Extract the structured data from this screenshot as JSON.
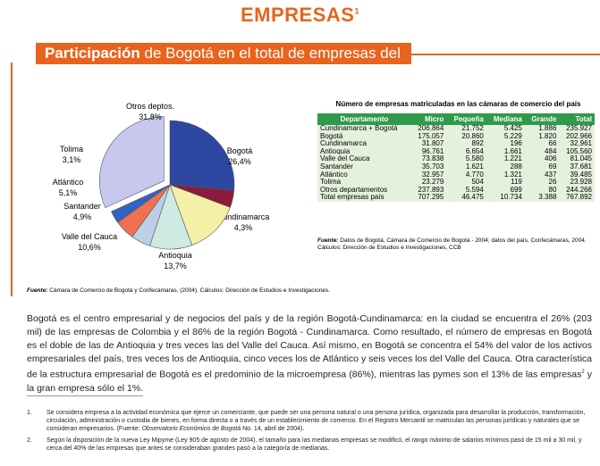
{
  "header": {
    "title": "EMPRESAS",
    "title_note": "1",
    "section_bold": "Participación",
    "section_rest": " de Bogotá en el total de empresas del país"
  },
  "chart_data": {
    "type": "pie",
    "categories": [
      "Bogotá",
      "Cundinamarca",
      "Antioquia",
      "Valle del Cauca",
      "Santander",
      "Atlántico",
      "Tolima",
      "Otros deptos."
    ],
    "values": [
      26.4,
      4.3,
      13.7,
      10.6,
      4.9,
      5.1,
      3.1,
      31.8
    ],
    "value_labels": [
      "26,4%",
      "4,3%",
      "13,7%",
      "10,6%",
      "4,9%",
      "5,1%",
      "3,1%",
      "31,8%"
    ],
    "colors": [
      "#2e47a0",
      "#8c1b3c",
      "#f4f0a6",
      "#cfe9e3",
      "#bccfe6",
      "#f07052",
      "#3262c2",
      "#c8c8ee"
    ],
    "exploded": "Otros deptos.",
    "source_label": "Fuente:",
    "source": "Cámara de Comercio de Bogotá  y Confecámaras, (2004). Cálculos: Dirección de Estudios e Investigaciones."
  },
  "table": {
    "title": "Número de empresas matriculadas en las cámaras de comercio del país",
    "header": [
      "Departamento",
      "Micro",
      "Pequeña",
      "Mediana",
      "Grande",
      "Total"
    ],
    "rows": [
      [
        "Cundinamarca + Bogotá",
        "206.864",
        "21.752",
        "5.425",
        "1.886",
        "235.927"
      ],
      [
        "Bogotá",
        "175.057",
        "20.860",
        "5.229",
        "1.820",
        "202.966"
      ],
      [
        "Cundinamarca",
        "31.807",
        "892",
        "196",
        "66",
        "32.961"
      ],
      [
        "Antioquia",
        "96.761",
        "6.654",
        "1.661",
        "484",
        "105.560"
      ],
      [
        "Valle del Cauca",
        "73.838",
        "5.580",
        "1.221",
        "406",
        "81.045"
      ],
      [
        "Santander",
        "35.703",
        "1.621",
        "288",
        "69",
        "37.681"
      ],
      [
        "Atlántico",
        "32.957",
        "4.770",
        "1.321",
        "437",
        "39.485"
      ],
      [
        "Tolima",
        "23.279",
        "504",
        "119",
        "26",
        "23.928"
      ],
      [
        "Otros departamentos",
        "237.893",
        "5.594",
        "699",
        "80",
        "244.266"
      ],
      [
        "Total empresas país",
        "707.295",
        "46.475",
        "10.734",
        "3.388",
        "767.892"
      ]
    ],
    "source_label": "Fuente:",
    "source": " Datos de Bogotá, Cámara de Comercio de Bogotá - 2004; datos del país, Confecámaras, 2004. Cálculos: Dirección de Estudios e Investigaciones, CCB"
  },
  "paragraph": {
    "text": "Bogotá es el centro empresarial y de negocios del país y de la región Bogotá-Cundinamarca: en la ciudad se encuentra el 26% (203 mil) de las empresas de Colombia y el 86% de la región Bogotá - Cundinamarca. Como resultado, el número de empresas en Bogotá es el doble de las de Antioquia y tres veces las del Valle del Cauca. Así mismo, en Bogotá se concentra el 54% del valor de los activos empresariales del país, tres veces los de Antioquia, cinco veces los de Atlántico y seis veces los del Valle del Cauca. Otra característica de la estructura empresarial de Bogotá es el predominio de la microempresa (86%), mientras las pymes son el 13% de las empresas",
    "note": "2",
    "text_end": " y la gran empresa sólo el 1%."
  },
  "footnotes": [
    {
      "number": "1.",
      "text": "Se considera empresa a la actividad económica que ejerce un comerciante, que puede ser una persona natural o una persona jurídica, organizada para desarrollar la producción, transformación, circulación, administración o custodia de bienes, en forma directa o a través de un establecimiento de comercio. En el Registro Mercantil se matriculan las personas jurídicas y naturales que se consideran empresarios. (Fuente: ",
      "source": "Observatorio Económico de Bogotá",
      "text_end": " No. 14, abril de 2004)."
    },
    {
      "number": "2.",
      "text": "Según la disposición de la nueva Ley Mipyme (Ley 905 de agosto de 2004), el tamaño para las medianas empresas se modificó, el rango máximo de salarios mínimos pasó de 15 mil a 30 mil, y cerca del 40% de las empresas que antes se consideraban grandes pasó a la categoría de medianas."
    }
  ]
}
